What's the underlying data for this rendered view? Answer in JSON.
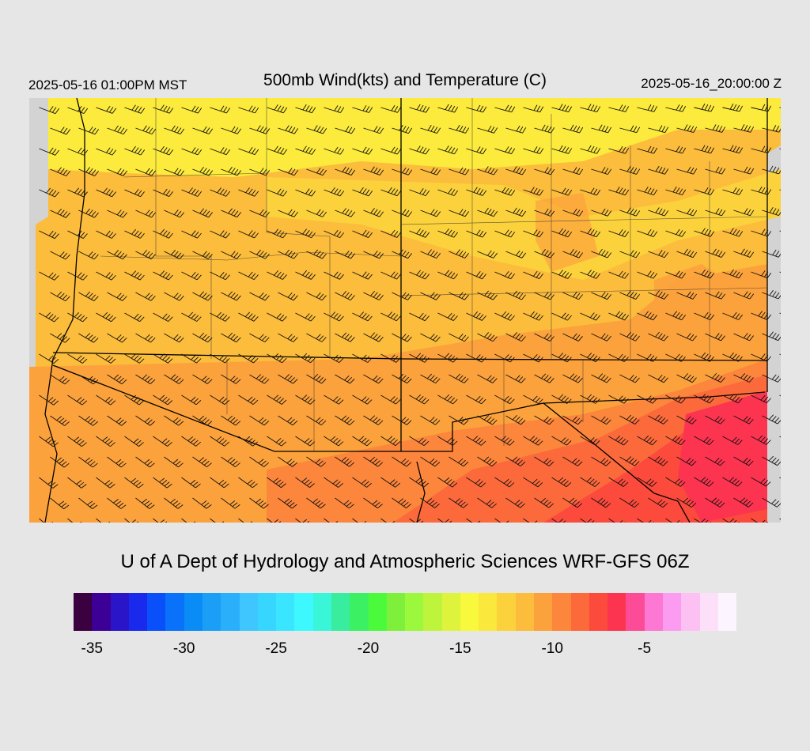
{
  "header": {
    "local_time": "2025-05-16 01:00PM MST",
    "title": "500mb Wind(kts) and Temperature (C)",
    "utc_time": "2025-05-16_20:00:00 Z"
  },
  "credit": "U of A Dept of Hydrology and Atmospheric Sciences WRF-GFS 06Z",
  "colorbar": {
    "colors": [
      "#3a0040",
      "#3c0096",
      "#2a16c8",
      "#1a2aec",
      "#0a50fa",
      "#0a72fa",
      "#0a8cf6",
      "#1a9ef6",
      "#2ab0fa",
      "#40c6ff",
      "#36d6ff",
      "#3ae6ff",
      "#3ef8ff",
      "#3af6d8",
      "#38ee9e",
      "#3cf064",
      "#4cfa3c",
      "#7ef03c",
      "#9cf83c",
      "#bef43c",
      "#def43c",
      "#f8f83c",
      "#fae83c",
      "#fcd23c",
      "#fcbc3c",
      "#fca23c",
      "#fc863c",
      "#fc6a3c",
      "#fc4a3c",
      "#fc3450",
      "#fc4c98",
      "#fc78d2",
      "#fc9cf0",
      "#fcc0f2",
      "#fce0fa",
      "#fcf4fe"
    ],
    "labels": [
      "-35",
      "-30",
      "-25",
      "-20",
      "-15",
      "-10",
      "-5"
    ]
  },
  "map": {
    "temperature_colors": {
      "yellow": "#fcea3c",
      "light_orange": "#fcd23c",
      "orange": "#fcbc3c",
      "dark_orange": "#fca23c",
      "red_orange": "#fc863c",
      "red": "#fc6a3c",
      "deep_red": "#fc4a3c",
      "crimson": "#fc3450"
    },
    "missing_color": "#d3d3d3"
  }
}
